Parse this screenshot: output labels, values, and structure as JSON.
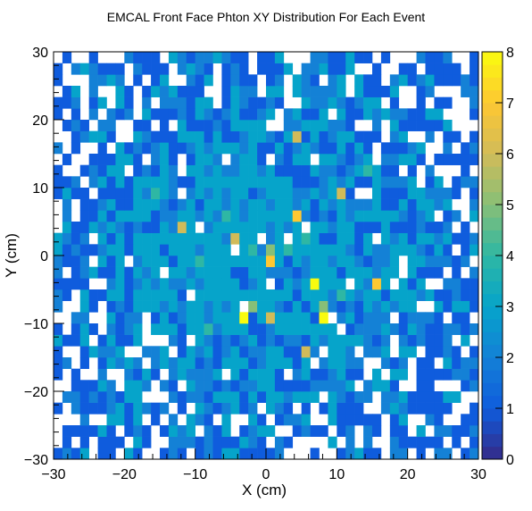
{
  "chart_data": {
    "type": "heatmap",
    "title": "EMCAL Front Face Phton XY Distribution For Each Event",
    "xlabel": "X (cm)",
    "ylabel": "Y (cm)",
    "xlim": [
      -30,
      30
    ],
    "ylim": [
      -30,
      30
    ],
    "zlim": [
      0,
      8
    ],
    "x_ticks": [
      "−30",
      "−20",
      "−10",
      "0",
      "10",
      "20",
      "30"
    ],
    "y_ticks": [
      "−30",
      "−20",
      "−10",
      "0",
      "10",
      "20",
      "30"
    ],
    "z_ticks": [
      "0",
      "1",
      "2",
      "3",
      "4",
      "5",
      "6",
      "7",
      "8"
    ],
    "bins": {
      "nx": 48,
      "ny": 36,
      "bin_width_x": 1.25,
      "bin_width_y": 1.6667
    },
    "palette": [
      "#352a87",
      "#0f5cdd",
      "#1481d6",
      "#06a4ca",
      "#2eb7a4",
      "#87bf77",
      "#d1bb59",
      "#fec832",
      "#f9fb0e"
    ],
    "grid": false,
    "colorbar": "right",
    "cells": [
      {
        "x": 0.0,
        "y": 0.0,
        "v": 5
      },
      {
        "x": 1.2,
        "y": -1.2,
        "v": 7
      },
      {
        "x": -2.5,
        "y": 1.6,
        "v": 4
      },
      {
        "x": 3.8,
        "y": 5.8,
        "v": 7
      },
      {
        "x": 4.2,
        "y": 16.9,
        "v": 6
      },
      {
        "x": 10.6,
        "y": 9.3,
        "v": 6
      },
      {
        "x": -5.0,
        "y": 3.2,
        "v": 6
      },
      {
        "x": -12.5,
        "y": 4.8,
        "v": 6
      },
      {
        "x": 6.9,
        "y": -3.9,
        "v": 8
      },
      {
        "x": 15.0,
        "y": -3.9,
        "v": 7
      },
      {
        "x": -3.1,
        "y": -8.7,
        "v": 8
      },
      {
        "x": 8.1,
        "y": -8.7,
        "v": 8
      },
      {
        "x": 0.6,
        "y": -8.7,
        "v": 6
      },
      {
        "x": 5.6,
        "y": -13.8,
        "v": 6
      },
      {
        "x": 8.7,
        "y": -7.1,
        "v": 5
      },
      {
        "x": -1.9,
        "y": -7.1,
        "v": 5
      },
      {
        "x": 2.5,
        "y": 1.6,
        "v": 4
      },
      {
        "x": -6.2,
        "y": 6.4,
        "v": 4
      },
      {
        "x": 6.2,
        "y": 2.5,
        "v": 4
      },
      {
        "x": -10.0,
        "y": -1.2,
        "v": 4
      },
      {
        "x": 11.2,
        "y": -5.5,
        "v": 4
      },
      {
        "x": -15.6,
        "y": 9.0,
        "v": 4
      },
      {
        "x": 13.8,
        "y": 12.2,
        "v": 4
      },
      {
        "x": -8.7,
        "y": -10.3,
        "v": 4
      }
    ]
  }
}
